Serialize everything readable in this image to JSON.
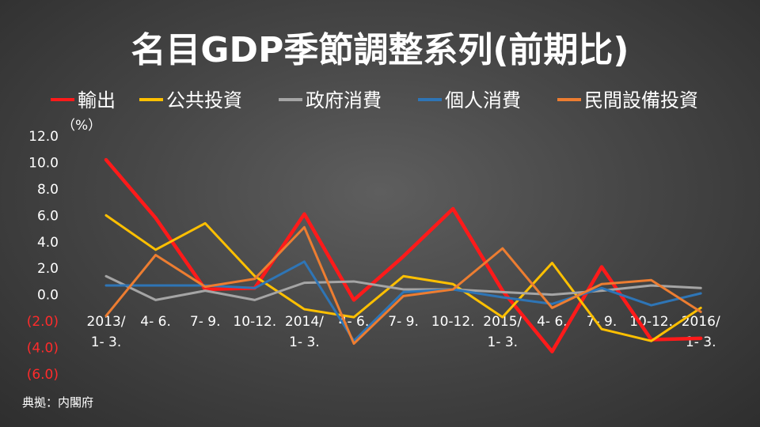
{
  "chart_data": {
    "type": "line",
    "title": "名目GDP季節調整系列(前期比)",
    "unit_label": "（%）",
    "source": "典拠：内閣府",
    "ylim": [
      -6,
      12
    ],
    "yticks": [
      {
        "value": 12,
        "label": "12.0"
      },
      {
        "value": 10,
        "label": "10.0"
      },
      {
        "value": 8,
        "label": "8.0"
      },
      {
        "value": 6,
        "label": "6.0"
      },
      {
        "value": 4,
        "label": "4.0"
      },
      {
        "value": 2,
        "label": "2.0"
      },
      {
        "value": 0,
        "label": "0.0"
      },
      {
        "value": -2,
        "label": "(2.0)"
      },
      {
        "value": -4,
        "label": "(4.0)"
      },
      {
        "value": -6,
        "label": "(6.0)"
      }
    ],
    "categories": [
      [
        "2013/",
        "1- 3."
      ],
      [
        "4- 6."
      ],
      [
        "7- 9."
      ],
      [
        "10-12."
      ],
      [
        "2014/",
        "1- 3."
      ],
      [
        "4- 6."
      ],
      [
        "7- 9."
      ],
      [
        "10-12."
      ],
      [
        "2015/",
        "1- 3."
      ],
      [
        "4- 6."
      ],
      [
        "7- 9."
      ],
      [
        "10-12."
      ],
      [
        "2016/",
        "1- 3."
      ]
    ],
    "series": [
      {
        "name": "輸出",
        "color": "#ff1a1a",
        "width": 4.5,
        "values": [
          10.2,
          5.8,
          0.4,
          0.5,
          6.1,
          -0.4,
          2.9,
          6.5,
          0.3,
          -4.3,
          2.1,
          -3.4,
          -3.3
        ]
      },
      {
        "name": "公共投資",
        "color": "#ffc000",
        "width": 3,
        "values": [
          6.0,
          3.4,
          5.4,
          1.4,
          -1.1,
          -1.7,
          1.4,
          0.8,
          -1.7,
          2.4,
          -2.6,
          -3.5,
          -1.0
        ]
      },
      {
        "name": "政府消費",
        "color": "#a5a5a5",
        "width": 3,
        "values": [
          1.4,
          -0.4,
          0.3,
          -0.4,
          0.9,
          1.0,
          0.4,
          0.4,
          0.2,
          0.0,
          0.3,
          0.7,
          0.5
        ]
      },
      {
        "name": "個人消費",
        "color": "#2e75b6",
        "width": 3,
        "values": [
          0.7,
          0.7,
          0.7,
          0.5,
          2.5,
          -3.5,
          0.2,
          0.4,
          -0.2,
          -0.7,
          0.5,
          -0.8,
          0.1
        ]
      },
      {
        "name": "民間設備投資",
        "color": "#ed7d31",
        "width": 3,
        "values": [
          -1.6,
          3.0,
          0.6,
          1.2,
          5.1,
          -3.7,
          -0.1,
          0.4,
          3.5,
          -1.0,
          0.8,
          1.1,
          -1.3
        ]
      }
    ]
  }
}
